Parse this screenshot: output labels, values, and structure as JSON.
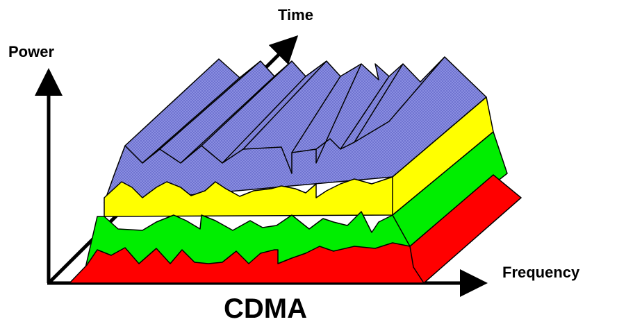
{
  "labels": {
    "time": "Time",
    "power": "Power",
    "frequency": "Frequency",
    "title": "CDMA"
  }
}
